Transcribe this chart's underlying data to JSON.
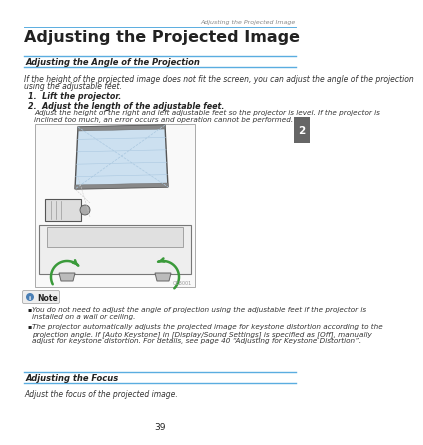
{
  "page_title": "Adjusting the Projected Image",
  "top_header_text": "Adjusting the Projected Image",
  "section1_title": "Adjusting the Angle of the Projection",
  "section1_intro_line1": "If the height of the projected image does not fit the screen, you can adjust the angle of the projection",
  "section1_intro_line2": "using the adjustable feet.",
  "step1": "1.  Lift the projector.",
  "step2": "2.  Adjust the length of the adjustable feet.",
  "step2_detail_line1": "Adjust the height of the right and left adjustable feet so the projector is level. If the projector is",
  "step2_detail_line2": "inclined too much, an error occurs and operation cannot be performed.",
  "note_label": "Note",
  "note_bullet1_line1": "You do not need to adjust the angle of projection using the adjustable feet if the projector is",
  "note_bullet1_line2": "installed on a wall or ceiling.",
  "note_bullet2_line1": "The projector automatically adjusts the projected image for keystone distortion according to the",
  "note_bullet2_line2": "projection angle. If [Auto Keystone] in [Display/Sound Settings] is specified as [Off], manually",
  "note_bullet2_line3": "adjust for keystone distortion. For details, see page 40 “Adjusting for Keystone Distortion”.",
  "section2_title": "Adjusting the Focus",
  "section2_text": "Adjust the focus of the projected image.",
  "page_number": "39",
  "chapter_num": "2",
  "bg_color": "#ffffff",
  "text_color": "#333333",
  "blue_color": "#5aade0",
  "dark_text": "#222222",
  "gray_tab": "#666666",
  "note_border": "#cccccc",
  "green_arrow": "#3a9a3a",
  "illus_border": "#aaaaaa",
  "screen_fill": "#cce0f0",
  "screen_border": "#555555",
  "proj_fill": "#dddddd",
  "base_fill": "#eeeeee",
  "foot_fill": "#bbbbbb"
}
